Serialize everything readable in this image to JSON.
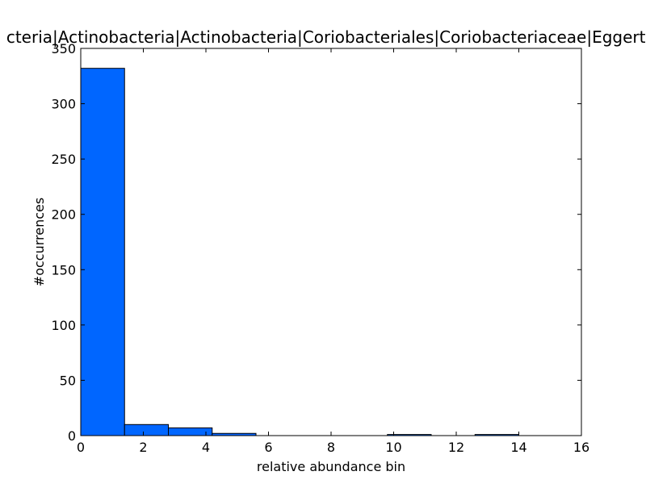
{
  "chart_data": {
    "type": "bar",
    "title": "cteria|Actinobacteria|Actinobacteria|Coriobacteriales|Coriobacteriaceae|Eggerth",
    "xlabel": "relative abundance bin",
    "ylabel": "#occurrences",
    "xlim": [
      0,
      16
    ],
    "ylim": [
      0,
      350
    ],
    "xticks": [
      0,
      2,
      4,
      6,
      8,
      10,
      12,
      14,
      16
    ],
    "yticks": [
      0,
      50,
      100,
      150,
      200,
      250,
      300,
      350
    ],
    "grid": false,
    "bar_color": "#0066ff",
    "bins": [
      {
        "x0": 0.0,
        "x1": 1.4,
        "value": 332
      },
      {
        "x0": 1.4,
        "x1": 2.8,
        "value": 10
      },
      {
        "x0": 2.8,
        "x1": 4.2,
        "value": 7
      },
      {
        "x0": 4.2,
        "x1": 5.6,
        "value": 2
      },
      {
        "x0": 5.6,
        "x1": 7.0,
        "value": 0
      },
      {
        "x0": 7.0,
        "x1": 8.4,
        "value": 0
      },
      {
        "x0": 8.4,
        "x1": 9.8,
        "value": 0
      },
      {
        "x0": 9.8,
        "x1": 11.2,
        "value": 1
      },
      {
        "x0": 11.2,
        "x1": 12.6,
        "value": 0
      },
      {
        "x0": 12.6,
        "x1": 14.0,
        "value": 1
      }
    ]
  }
}
